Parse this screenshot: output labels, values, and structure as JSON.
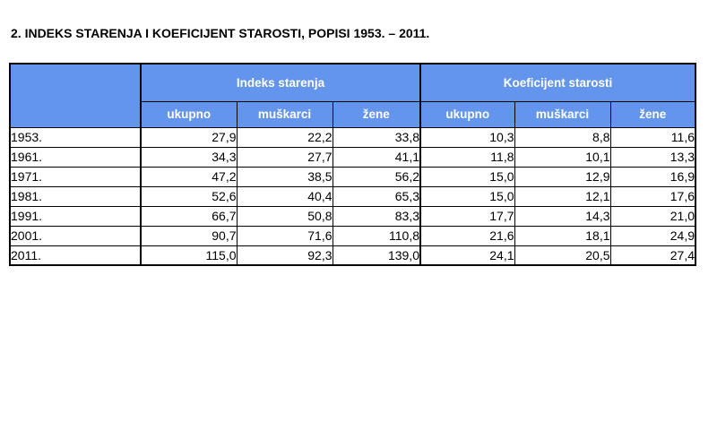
{
  "page": {
    "title": "2. INDEKS STARENJA I KOEFICIJENT STAROSTI, POPISI 1953. – 2011."
  },
  "colors": {
    "header_bg": "#6495ED",
    "header_text": "#FFFFFF",
    "border": "#000000",
    "page_bg": "#FFFFFF"
  },
  "table": {
    "groups": [
      {
        "label": "Indeks starenja"
      },
      {
        "label": "Koeficijent starosti"
      }
    ],
    "columns": [
      "ukupno",
      "muškarci",
      "žene",
      "ukupno",
      "muškarci",
      "žene"
    ],
    "rows": [
      {
        "year": "1953.",
        "values": [
          "27,9",
          "22,2",
          "33,8",
          "10,3",
          "8,8",
          "11,6"
        ]
      },
      {
        "year": "1961.",
        "values": [
          "34,3",
          "27,7",
          "41,1",
          "11,8",
          "10,1",
          "13,3"
        ]
      },
      {
        "year": "1971.",
        "values": [
          "47,2",
          "38,5",
          "56,2",
          "15,0",
          "12,9",
          "16,9"
        ]
      },
      {
        "year": "1981.",
        "values": [
          "52,6",
          "40,4",
          "65,3",
          "15,0",
          "12,1",
          "17,6"
        ]
      },
      {
        "year": "1991.",
        "values": [
          "66,7",
          "50,8",
          "83,3",
          "17,7",
          "14,3",
          "21,0"
        ]
      },
      {
        "year": "2001.",
        "values": [
          "90,7",
          "71,6",
          "110,8",
          "21,6",
          "18,1",
          "24,9"
        ]
      },
      {
        "year": "2011.",
        "values": [
          "115,0",
          "92,3",
          "139,0",
          "24,1",
          "20,5",
          "27,4"
        ]
      }
    ]
  }
}
